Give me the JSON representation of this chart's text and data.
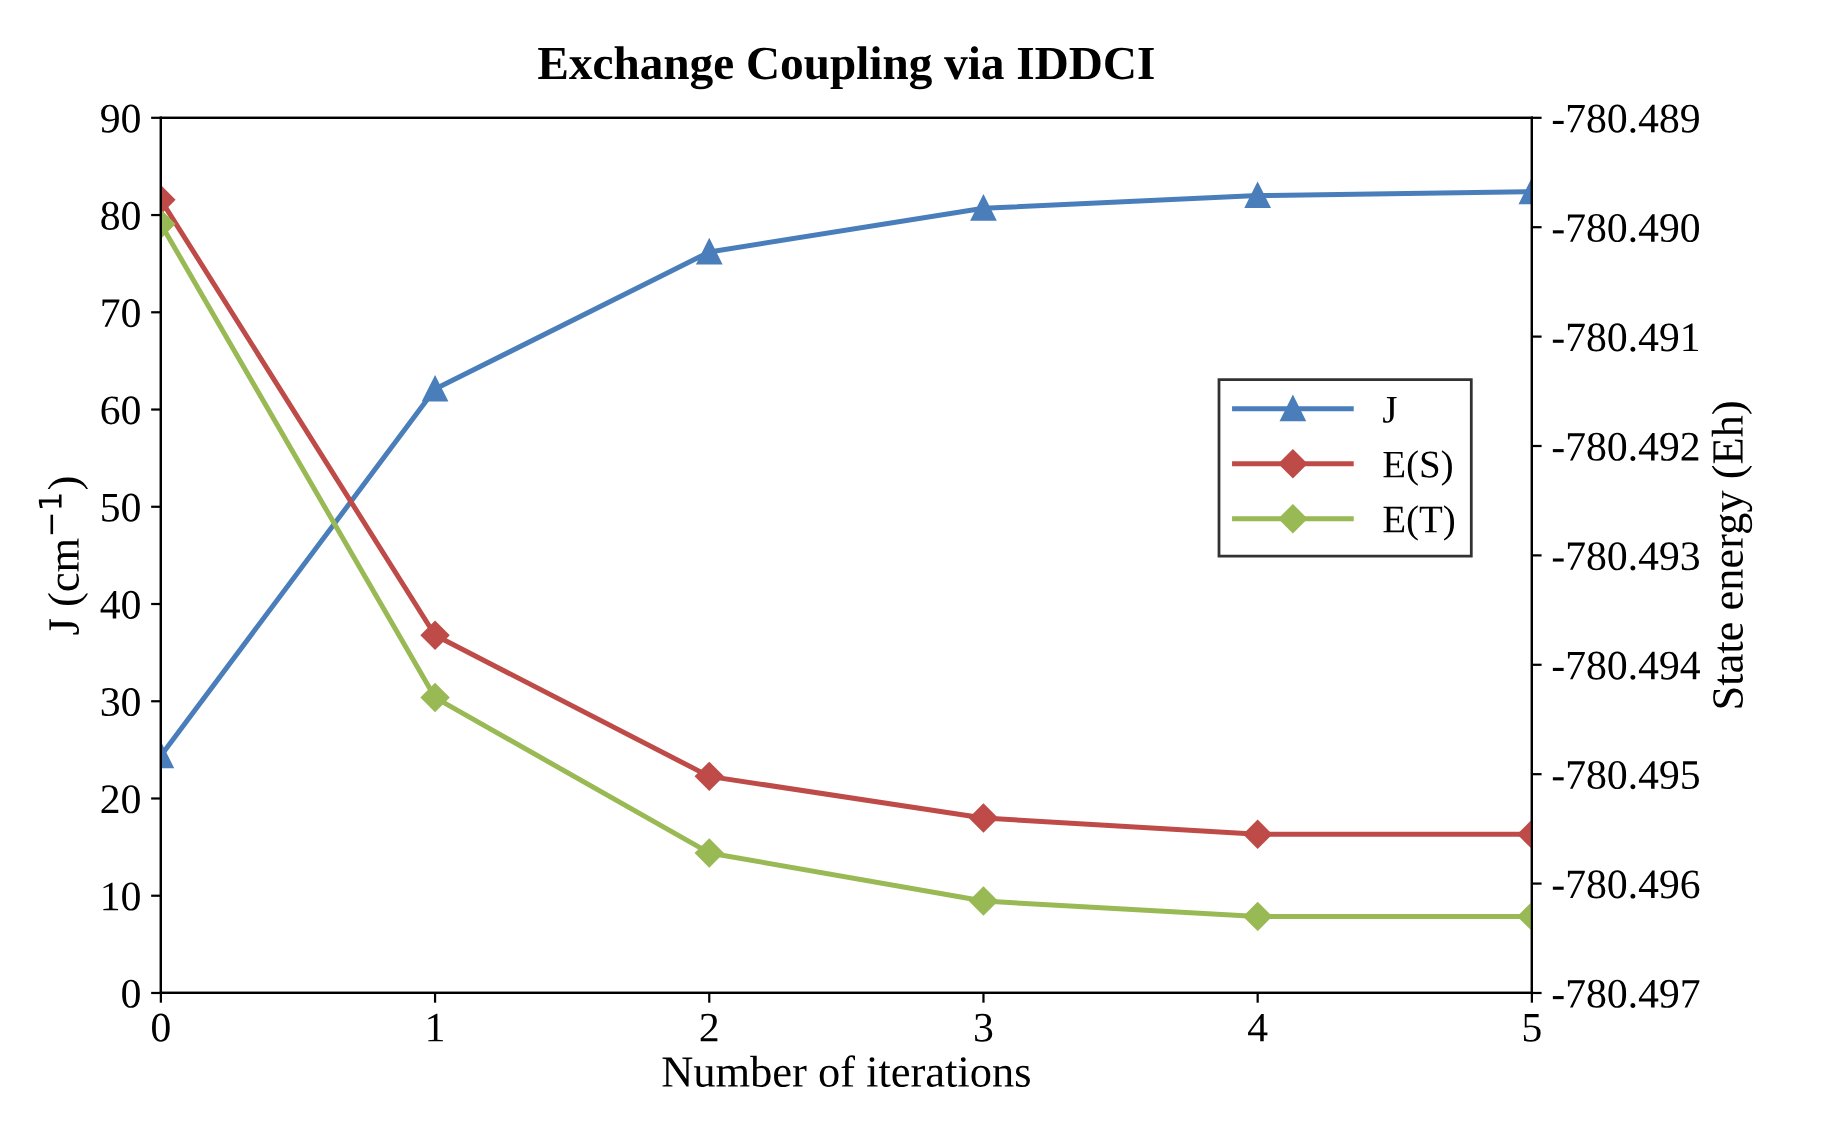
{
  "chart_data": {
    "type": "line",
    "title": "Exchange Coupling via IDDCI",
    "xlabel": "Number of iterations",
    "ylabel": "J (cm$^{−1}$)",
    "y2label": "State energy (Eh)",
    "x": [
      0,
      1,
      2,
      3,
      4,
      5
    ],
    "xlim": [
      0,
      5
    ],
    "xticks": [
      0,
      1,
      2,
      3,
      4,
      5
    ],
    "ylim": [
      0,
      90
    ],
    "yticks": [
      0,
      10,
      20,
      30,
      40,
      50,
      60,
      70,
      80,
      90
    ],
    "y2lim": [
      -780.497,
      -780.489
    ],
    "y2ticks": [
      {
        "value": -780.497,
        "label": "-780.497"
      },
      {
        "value": -780.496,
        "label": "-780.496"
      },
      {
        "value": -780.495,
        "label": "-780.495"
      },
      {
        "value": -780.494,
        "label": "-780.494"
      },
      {
        "value": -780.493,
        "label": "-780.493"
      },
      {
        "value": -780.492,
        "label": "-780.492"
      },
      {
        "value": -780.491,
        "label": "-780.491"
      },
      {
        "value": -780.49,
        "label": "-780.490"
      },
      {
        "value": -780.489,
        "label": "-780.489"
      }
    ],
    "legend": "center right",
    "grid": false,
    "line_style": "solid",
    "series": [
      {
        "name": "J",
        "color": "#4a7ebb",
        "marker": "triangle",
        "values": [
          24.4,
          62.1,
          76.2,
          80.7,
          82.0,
          82.4
        ]
      },
      {
        "name": "E(S)",
        "color": "#be4b48",
        "marker": "diamond",
        "axis": "y2",
        "values": [
          -780.48975,
          -780.49373,
          -780.49502,
          -780.4954,
          -780.49555,
          -780.49555
        ]
      },
      {
        "name": "E(T)",
        "color": "#98b954",
        "marker": "diamond",
        "axis": "y2",
        "values": [
          -780.48997,
          -780.4943,
          -780.49572,
          -780.49616,
          -780.4963,
          -780.4963
        ]
      }
    ]
  }
}
